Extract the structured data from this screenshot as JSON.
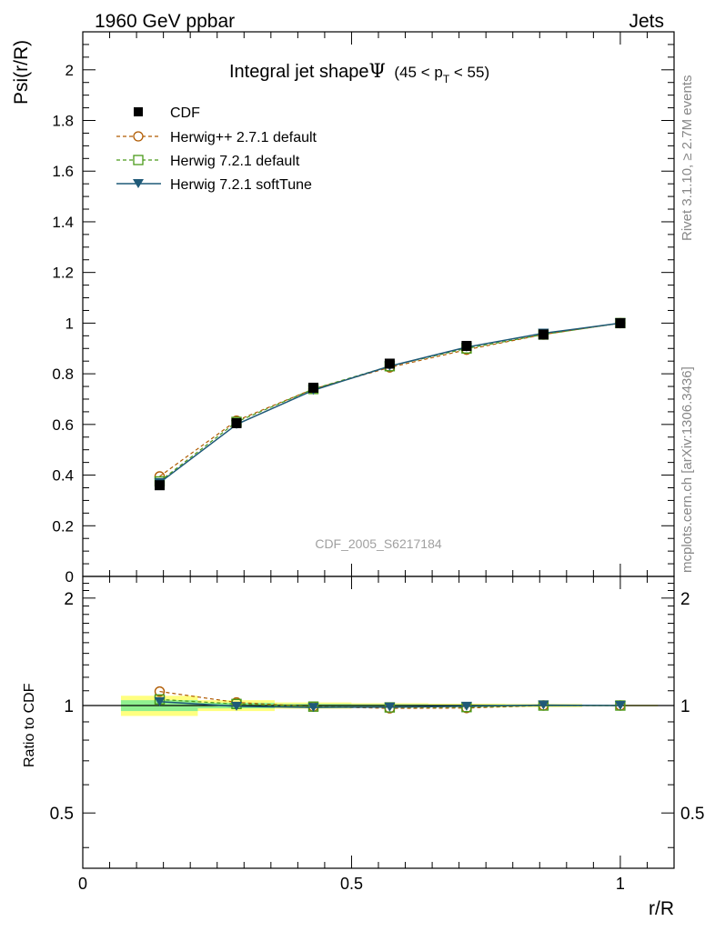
{
  "header": {
    "left": "1960 GeV ppbar",
    "right": "Jets"
  },
  "side_labels": {
    "rivet": "Rivet 3.1.10, ≥ 2.7M events",
    "mcplots": "mcplots.cern.ch [arXiv:1306.3436]"
  },
  "watermark": "CDF_2005_S6217184",
  "colors": {
    "cdf": "#000000",
    "herwigpp": "#b05a00",
    "herwig721": "#4a9a1a",
    "softtune": "#1f5a78",
    "band_yellow": "#ffff80",
    "band_green": "#90f090"
  },
  "chart_data": [
    {
      "type": "line",
      "title_main": "Integral jet shape",
      "title_symbol": "Ψ",
      "title_range": "(45 < p",
      "title_sub": "T",
      "title_range_end": " < 55)",
      "ylabel": "Psi(r/R)",
      "xlim": [
        0,
        1.1
      ],
      "ylim": [
        0,
        2.15
      ],
      "yticks": [
        "0",
        "0.2",
        "0.4",
        "0.6",
        "0.8",
        "1",
        "1.2",
        "1.4",
        "1.6",
        "1.8",
        "2"
      ],
      "x": [
        0.143,
        0.286,
        0.429,
        0.571,
        0.714,
        0.857,
        1.0
      ],
      "series": [
        {
          "name": "CDF",
          "marker": "square-filled",
          "values": [
            0.36,
            0.605,
            0.745,
            0.84,
            0.91,
            0.955,
            1.0
          ]
        },
        {
          "name": "Herwig++ 2.7.1 default",
          "marker": "circle-open",
          "values": [
            0.395,
            0.615,
            0.74,
            0.825,
            0.895,
            0.955,
            1.0
          ]
        },
        {
          "name": "Herwig 7.2.1 default",
          "marker": "square-open",
          "values": [
            0.375,
            0.61,
            0.74,
            0.83,
            0.9,
            0.955,
            1.0
          ]
        },
        {
          "name": "Herwig 7.2.1 softTune",
          "marker": "triangle-down-filled",
          "values": [
            0.37,
            0.6,
            0.735,
            0.83,
            0.905,
            0.96,
            1.0
          ]
        }
      ]
    },
    {
      "type": "line",
      "ylabel": "Ratio to CDF",
      "xlabel": "r/R",
      "xlim": [
        0,
        1.1
      ],
      "ylim": [
        0.35,
        2.3
      ],
      "yticks": [
        "0.5",
        "1",
        "2"
      ],
      "xticks": [
        "0",
        "0.5",
        "1"
      ],
      "x": [
        0.143,
        0.286,
        0.429,
        0.571,
        0.714,
        0.857,
        1.0
      ],
      "bands": {
        "bins": [
          [
            0.071,
            0.214
          ],
          [
            0.214,
            0.357
          ],
          [
            0.357,
            0.5
          ],
          [
            0.5,
            0.643
          ],
          [
            0.643,
            0.786
          ],
          [
            0.786,
            0.929
          ],
          [
            0.929,
            1.07
          ]
        ],
        "yellow": [
          0.065,
          0.035,
          0.02,
          0.015,
          0.012,
          0.01,
          0.005
        ],
        "green": [
          0.035,
          0.018,
          0.01,
          0.008,
          0.006,
          0.005,
          0.003
        ]
      },
      "series": [
        {
          "name": "Herwig++ 2.7.1 default",
          "values": [
            1.095,
            1.02,
            0.993,
            0.982,
            0.984,
            1.0,
            1.0
          ]
        },
        {
          "name": "Herwig 7.2.1 default",
          "values": [
            1.04,
            1.01,
            0.993,
            0.988,
            0.99,
            1.0,
            1.0
          ]
        },
        {
          "name": "Herwig 7.2.1 softTune",
          "values": [
            1.025,
            0.995,
            0.988,
            0.99,
            0.995,
            1.003,
            1.0
          ]
        }
      ]
    }
  ]
}
